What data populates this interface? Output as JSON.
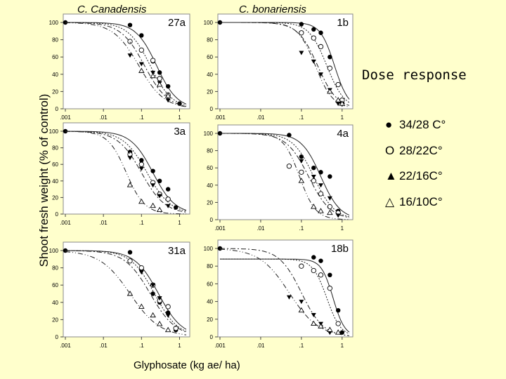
{
  "header": {
    "species_left": "C. Canadensis",
    "species_right": "C. bonariensis"
  },
  "y_axis_label": "Shoot fresh weight (% of control)",
  "x_axis_label": "Glyphosate (kg ae/ ha)",
  "legend": {
    "title": "Dose response",
    "items": [
      {
        "symbol": "●",
        "label": "34/28 C°",
        "marker": "filled-circle"
      },
      {
        "symbol": "O",
        "label": "28/22C°",
        "marker": "open-circle"
      },
      {
        "symbol": "▲",
        "label": "22/16C°",
        "marker": "filled-triangle"
      },
      {
        "symbol": "△",
        "label": "16/10C°",
        "marker": "open-triangle"
      }
    ]
  },
  "chart_data": [
    {
      "panel": "27a",
      "type": "scatter",
      "xscale": "log",
      "xlim": [
        0.001,
        1.5
      ],
      "ylim": [
        0,
        100
      ],
      "xticks": [
        ".001",
        ".01",
        ".1",
        "1"
      ],
      "yticks": [
        "0",
        "20",
        "40",
        "60",
        "80",
        "100"
      ],
      "series": [
        {
          "name": "34/28 C°",
          "marker": "filled-circle",
          "x": [
            0.001,
            0.05,
            0.1,
            0.2,
            0.3,
            0.5,
            1
          ],
          "y": [
            100,
            97,
            85,
            55,
            42,
            26,
            6
          ],
          "fit": {
            "top": 100,
            "ed50": 0.25,
            "slope": 1.6
          }
        },
        {
          "name": "28/22C°",
          "marker": "open-circle",
          "x": [
            0.05,
            0.1,
            0.2,
            0.3,
            0.5
          ],
          "y": [
            78,
            68,
            56,
            35,
            16
          ],
          "fit": {
            "top": 100,
            "ed50": 0.17,
            "slope": 1.5
          }
        },
        {
          "name": "22/16C°",
          "marker": "filled-triangle",
          "x": [
            0.05,
            0.1,
            0.2,
            0.3,
            0.5
          ],
          "y": [
            62,
            52,
            42,
            30,
            10
          ],
          "fit": {
            "top": 100,
            "ed50": 0.12,
            "slope": 1.4
          }
        },
        {
          "name": "16/10C°",
          "marker": "open-triangle",
          "x": [
            0.1,
            0.2,
            0.3,
            0.5
          ],
          "y": [
            44,
            38,
            28,
            15
          ],
          "fit": {
            "top": 100,
            "ed50": 0.085,
            "slope": 1.3
          }
        }
      ]
    },
    {
      "panel": "1b",
      "type": "scatter",
      "xscale": "log",
      "xlim": [
        0.001,
        1.5
      ],
      "ylim": [
        0,
        100
      ],
      "xticks": [
        ".001",
        ".01",
        ".1",
        "1"
      ],
      "yticks": [
        "0",
        "20",
        "40",
        "60",
        "80",
        "100"
      ],
      "series": [
        {
          "name": "34/28 C°",
          "marker": "filled-circle",
          "x": [
            0.001,
            0.1,
            0.2,
            0.3,
            0.5,
            1
          ],
          "y": [
            100,
            98,
            92,
            88,
            60,
            8
          ],
          "fit": {
            "top": 100,
            "ed50": 0.65,
            "slope": 2.5
          }
        },
        {
          "name": "28/22C°",
          "marker": "open-circle",
          "x": [
            0.1,
            0.2,
            0.3,
            0.5,
            0.8,
            1
          ],
          "y": [
            88,
            82,
            72,
            47,
            28,
            10
          ],
          "fit": {
            "top": 100,
            "ed50": 0.42,
            "slope": 2.0
          }
        },
        {
          "name": "22/16C°",
          "marker": "filled-triangle",
          "x": [
            0.1,
            0.2,
            0.3,
            0.5,
            0.8,
            1
          ],
          "y": [
            65,
            55,
            40,
            22,
            6,
            5
          ],
          "fit": {
            "top": 100,
            "ed50": 0.25,
            "slope": 1.8
          }
        },
        {
          "name": "16/10C°",
          "marker": "open-triangle",
          "x": [
            0.5,
            0.8,
            1
          ],
          "y": [
            20,
            10,
            6
          ],
          "fit": {
            "top": 100,
            "ed50": 0.22,
            "slope": 2.0
          }
        }
      ]
    },
    {
      "panel": "3a",
      "type": "scatter",
      "xscale": "log",
      "xlim": [
        0.001,
        1.5
      ],
      "ylim": [
        0,
        100
      ],
      "xticks": [
        ".001",
        ".01",
        ".1",
        "1"
      ],
      "yticks": [
        "0",
        "20",
        "40",
        "60",
        "80",
        "100"
      ],
      "series": [
        {
          "name": "34/28 C°",
          "marker": "filled-circle",
          "x": [
            0.001,
            0.05,
            0.1,
            0.2,
            0.3,
            0.5,
            0.8
          ],
          "y": [
            100,
            75,
            65,
            52,
            40,
            30,
            8
          ],
          "fit": {
            "top": 100,
            "ed50": 0.2,
            "slope": 1.5
          }
        },
        {
          "name": "28/22C°",
          "marker": "open-circle",
          "x": [
            0.05,
            0.1,
            0.2,
            0.3,
            0.5
          ],
          "y": [
            72,
            60,
            38,
            24,
            18
          ],
          "fit": {
            "top": 100,
            "ed50": 0.14,
            "slope": 1.4
          }
        },
        {
          "name": "22/16C°",
          "marker": "filled-triangle",
          "x": [
            0.05,
            0.1,
            0.2,
            0.3,
            0.5
          ],
          "y": [
            68,
            55,
            35,
            22,
            10
          ],
          "fit": {
            "top": 100,
            "ed50": 0.1,
            "slope": 1.4
          }
        },
        {
          "name": "16/10C°",
          "marker": "open-triangle",
          "x": [
            0.05,
            0.1,
            0.2,
            0.3
          ],
          "y": [
            35,
            15,
            10,
            5
          ],
          "fit": {
            "top": 100,
            "ed50": 0.04,
            "slope": 1.8
          }
        }
      ]
    },
    {
      "panel": "4a",
      "type": "scatter",
      "xscale": "log",
      "xlim": [
        0.001,
        1.5
      ],
      "ylim": [
        0,
        100
      ],
      "xticks": [
        ".001",
        ".01",
        ".1",
        "1"
      ],
      "yticks": [
        "0",
        "20",
        "40",
        "60",
        "80",
        "100"
      ],
      "series": [
        {
          "name": "34/28 C°",
          "marker": "filled-circle",
          "x": [
            0.001,
            0.05,
            0.1,
            0.2,
            0.3,
            0.5,
            0.8
          ],
          "y": [
            100,
            98,
            73,
            60,
            55,
            50,
            10
          ],
          "fit": {
            "top": 100,
            "ed50": 0.3,
            "slope": 1.8
          }
        },
        {
          "name": "28/22C°",
          "marker": "open-circle",
          "x": [
            0.05,
            0.1,
            0.2,
            0.3,
            0.5,
            0.8
          ],
          "y": [
            62,
            55,
            45,
            30,
            15,
            8
          ],
          "fit": {
            "top": 100,
            "ed50": 0.2,
            "slope": 1.7
          }
        },
        {
          "name": "22/16C°",
          "marker": "filled-triangle",
          "x": [
            0.1,
            0.2,
            0.3,
            0.5,
            0.8
          ],
          "y": [
            68,
            50,
            40,
            25,
            5
          ],
          "fit": {
            "top": 100,
            "ed50": 0.15,
            "slope": 1.6
          }
        },
        {
          "name": "16/10C°",
          "marker": "open-triangle",
          "x": [
            0.1,
            0.2,
            0.3,
            0.5
          ],
          "y": [
            45,
            15,
            10,
            8
          ],
          "fit": {
            "top": 100,
            "ed50": 0.09,
            "slope": 2.2
          }
        }
      ]
    },
    {
      "panel": "31a",
      "type": "scatter",
      "xscale": "log",
      "xlim": [
        0.001,
        1.5
      ],
      "ylim": [
        0,
        100
      ],
      "xticks": [
        ".001",
        ".01",
        ".1",
        "1"
      ],
      "yticks": [
        "0",
        "20",
        "40",
        "60",
        "80",
        "100"
      ],
      "series": [
        {
          "name": "34/28 C°",
          "marker": "filled-circle",
          "x": [
            0.001,
            0.05,
            0.1,
            0.2,
            0.3,
            0.5,
            0.8
          ],
          "y": [
            100,
            98,
            78,
            50,
            40,
            28,
            8
          ],
          "fit": {
            "top": 100,
            "ed50": 0.28,
            "slope": 1.4
          }
        },
        {
          "name": "28/22C°",
          "marker": "open-circle",
          "x": [
            0.05,
            0.1,
            0.2,
            0.3,
            0.5,
            0.8
          ],
          "y": [
            88,
            80,
            60,
            42,
            35,
            10
          ],
          "fit": {
            "top": 100,
            "ed50": 0.22,
            "slope": 1.4
          }
        },
        {
          "name": "22/16C°",
          "marker": "filled-triangle",
          "x": [
            0.1,
            0.2,
            0.3,
            0.5
          ],
          "y": [
            75,
            60,
            45,
            25
          ],
          "fit": {
            "top": 100,
            "ed50": 0.17,
            "slope": 1.3
          }
        },
        {
          "name": "16/10C°",
          "marker": "open-triangle",
          "x": [
            0.05,
            0.1,
            0.2,
            0.3,
            0.5
          ],
          "y": [
            50,
            35,
            25,
            15,
            8
          ],
          "fit": {
            "top": 100,
            "ed50": 0.05,
            "slope": 1.1
          }
        }
      ]
    },
    {
      "panel": "18b",
      "type": "scatter",
      "xscale": "log",
      "xlim": [
        0.001,
        1.5
      ],
      "ylim": [
        0,
        100
      ],
      "xticks": [
        ".001",
        ".01",
        ".1",
        "1"
      ],
      "yticks": [
        "0",
        "20",
        "40",
        "60",
        "80",
        "100"
      ],
      "series": [
        {
          "name": "34/28 C°",
          "marker": "filled-circle",
          "x": [
            0.001,
            0.2,
            0.3,
            0.5,
            0.8,
            1
          ],
          "y": [
            100,
            90,
            86,
            70,
            30,
            5
          ],
          "fit": {
            "top": 88,
            "ed50": 0.6,
            "slope": 3.0
          }
        },
        {
          "name": "28/22C°",
          "marker": "open-circle",
          "x": [
            0.1,
            0.2,
            0.3,
            0.5,
            0.8
          ],
          "y": [
            80,
            75,
            70,
            55,
            15
          ],
          "fit": {
            "top": 88,
            "ed50": 0.42,
            "slope": 2.5
          }
        },
        {
          "name": "22/16C°",
          "marker": "filled-triangle",
          "x": [
            0.05,
            0.1,
            0.2,
            0.3,
            0.5
          ],
          "y": [
            45,
            40,
            25,
            15,
            5
          ],
          "fit": {
            "top": 100,
            "ed50": 0.1,
            "slope": 1.6
          }
        },
        {
          "name": "16/10C°",
          "marker": "open-triangle",
          "x": [
            0.1,
            0.2,
            0.3,
            0.5,
            0.8
          ],
          "y": [
            30,
            15,
            12,
            8,
            5
          ],
          "fit": {
            "top": 100,
            "ed50": 0.05,
            "slope": 1.2
          }
        }
      ]
    }
  ]
}
